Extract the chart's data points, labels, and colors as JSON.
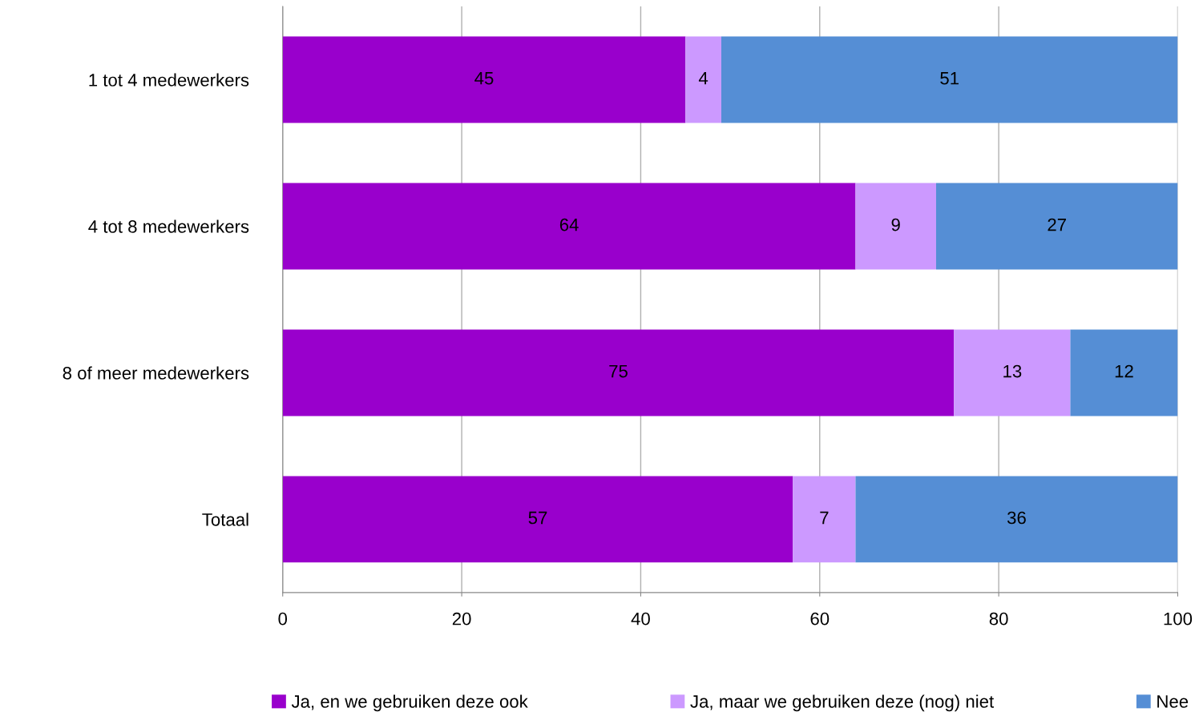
{
  "chart_data": {
    "type": "bar",
    "orientation": "horizontal",
    "stacked": true,
    "categories": [
      "1 tot 4 medewerkers",
      "4 tot 8 medewerkers",
      "8 of meer medewerkers",
      "Totaal"
    ],
    "series": [
      {
        "name": "Ja, en we gebruiken deze ook",
        "color": "#9900cc",
        "values": [
          45,
          64,
          75,
          57
        ]
      },
      {
        "name": "Ja, maar we gebruiken deze (nog) niet",
        "color": "#cc99ff",
        "values": [
          4,
          9,
          13,
          7
        ]
      },
      {
        "name": "Nee",
        "color": "#558ed5",
        "values": [
          51,
          27,
          12,
          36
        ]
      }
    ],
    "xlim": [
      0,
      100
    ],
    "xticks": [
      0,
      20,
      40,
      60,
      80,
      100
    ],
    "grid": "x",
    "legend": "bottom",
    "data_labels": true
  }
}
